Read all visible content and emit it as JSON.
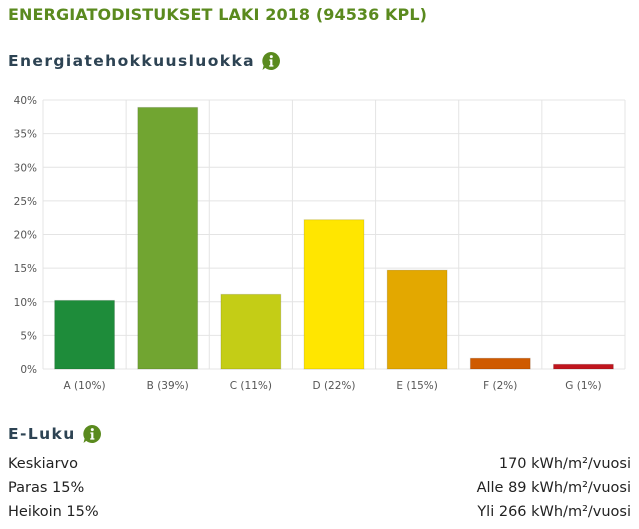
{
  "page_title": "ENERGIATODISTUKSET LAKI 2018 (94536 KPL)",
  "section1_title": "Energiatehokkuusluokka",
  "section2_title": "E-Luku",
  "info_icon": "info-icon",
  "colors": {
    "title": "#5a8a1e",
    "heading": "#2d4353",
    "icon": "#5a8a1e",
    "grid": "#e4e4e4",
    "axis_text": "#555555"
  },
  "chart_data": {
    "type": "bar",
    "categories": [
      "A (10%)",
      "B (39%)",
      "C (11%)",
      "D (22%)",
      "E (15%)",
      "F (2%)",
      "G (1%)"
    ],
    "values": [
      10.2,
      38.9,
      11.1,
      22.2,
      14.7,
      1.6,
      0.7
    ],
    "bar_colors": [
      "#1e8c3a",
      "#71a531",
      "#c4cd16",
      "#ffe600",
      "#e3a800",
      "#cf5a00",
      "#c0151d"
    ],
    "yticks": [
      "0%",
      "5%",
      "10%",
      "15%",
      "20%",
      "25%",
      "30%",
      "35%",
      "40%"
    ],
    "ylim": [
      0,
      40
    ],
    "grid": true,
    "legend": "none"
  },
  "stats": [
    {
      "label": "Keskiarvo",
      "value": "170 kWh/m²/vuosi"
    },
    {
      "label": "Paras 15%",
      "value": "Alle 89 kWh/m²/vuosi"
    },
    {
      "label": "Heikoin 15%",
      "value": "Yli 266 kWh/m²/vuosi"
    }
  ]
}
